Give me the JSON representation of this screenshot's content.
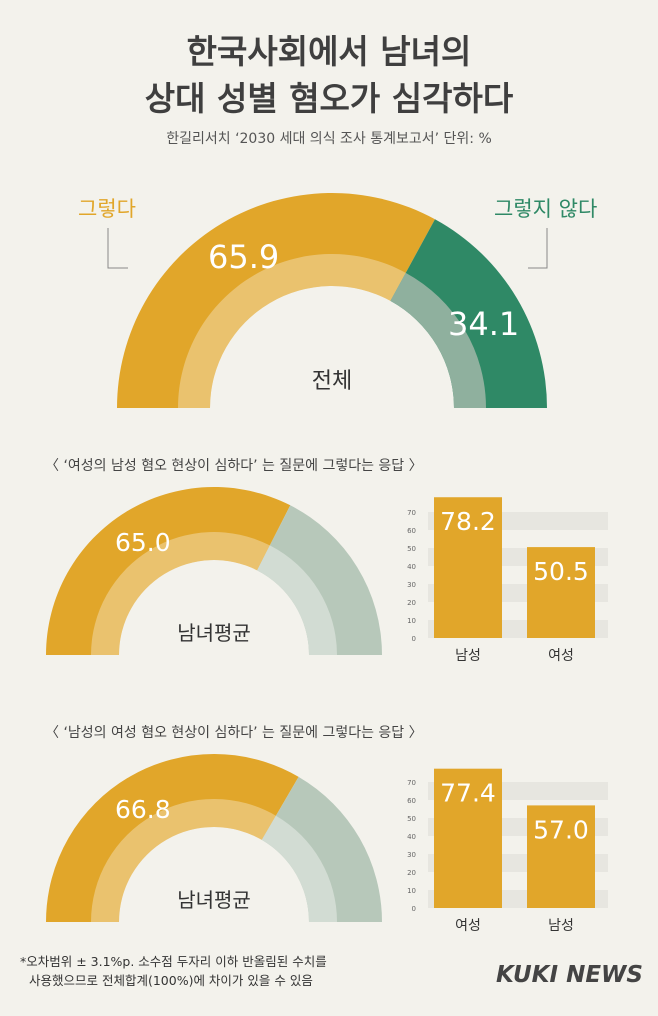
{
  "header": {
    "title_line1": "한국사회에서 남녀의",
    "title_line2": "상대 성별 혐오가 심각하다",
    "subtitle": "한길리서치 ‘2030 세대 의식 조사 통계보고서’ 단위: %"
  },
  "colors": {
    "yes": "#e1a62a",
    "no": "#2f8966",
    "no_muted": "#b7c8ba",
    "bar": "#e1a62a",
    "background": "#f3f2ec"
  },
  "chart_data": [
    {
      "type": "pie",
      "title": "전체",
      "labels": [
        "그렇다",
        "그렇지 않다"
      ],
      "values": [
        65.9,
        34.1
      ],
      "value_labels": [
        "65.9",
        "34.1"
      ]
    },
    {
      "type": "pie",
      "title": "‘여성의 남성 혐오 현상이 심하다’ 는 질문에 그렇다는 응답",
      "center_label": "남녀평균",
      "values": [
        65.0,
        35.0
      ],
      "value_labels": [
        "65.0"
      ]
    },
    {
      "type": "bar",
      "categories": [
        "남성",
        "여성"
      ],
      "values": [
        78.2,
        50.5
      ],
      "value_labels": [
        "78.2",
        "50.5"
      ],
      "ylim": [
        0,
        70
      ],
      "yticks": [
        "70",
        "60",
        "50",
        "40",
        "30",
        "20",
        "10",
        "0"
      ]
    },
    {
      "type": "pie",
      "title": "‘남성의 여성 혐오 현상이 심하다’ 는 질문에 그렇다는 응답",
      "center_label": "남녀평균",
      "values": [
        66.8,
        33.2
      ],
      "value_labels": [
        "66.8"
      ]
    },
    {
      "type": "bar",
      "categories": [
        "여성",
        "남성"
      ],
      "values": [
        77.4,
        57.0
      ],
      "value_labels": [
        "77.4",
        "57.0"
      ],
      "ylim": [
        0,
        70
      ],
      "yticks": [
        "70",
        "60",
        "50",
        "40",
        "30",
        "20",
        "10",
        "0"
      ]
    }
  ],
  "section1": {
    "question": "〈 ‘여성의 남성 혐오 현상이 심하다’ 는 질문에 그렇다는 응답 〉"
  },
  "section2": {
    "question": "〈 ‘남성의 여성 혐오 현상이 심하다’ 는 질문에 그렇다는 응답 〉"
  },
  "footnote": {
    "line1": "*오차범위 ± 3.1%p. 소수점 두자리 이하 반올림된 수치를",
    "line2": "사용했으므로 전체합계(100%)에 차이가 있을 수 있음"
  },
  "logo": "KUKI NEWS"
}
